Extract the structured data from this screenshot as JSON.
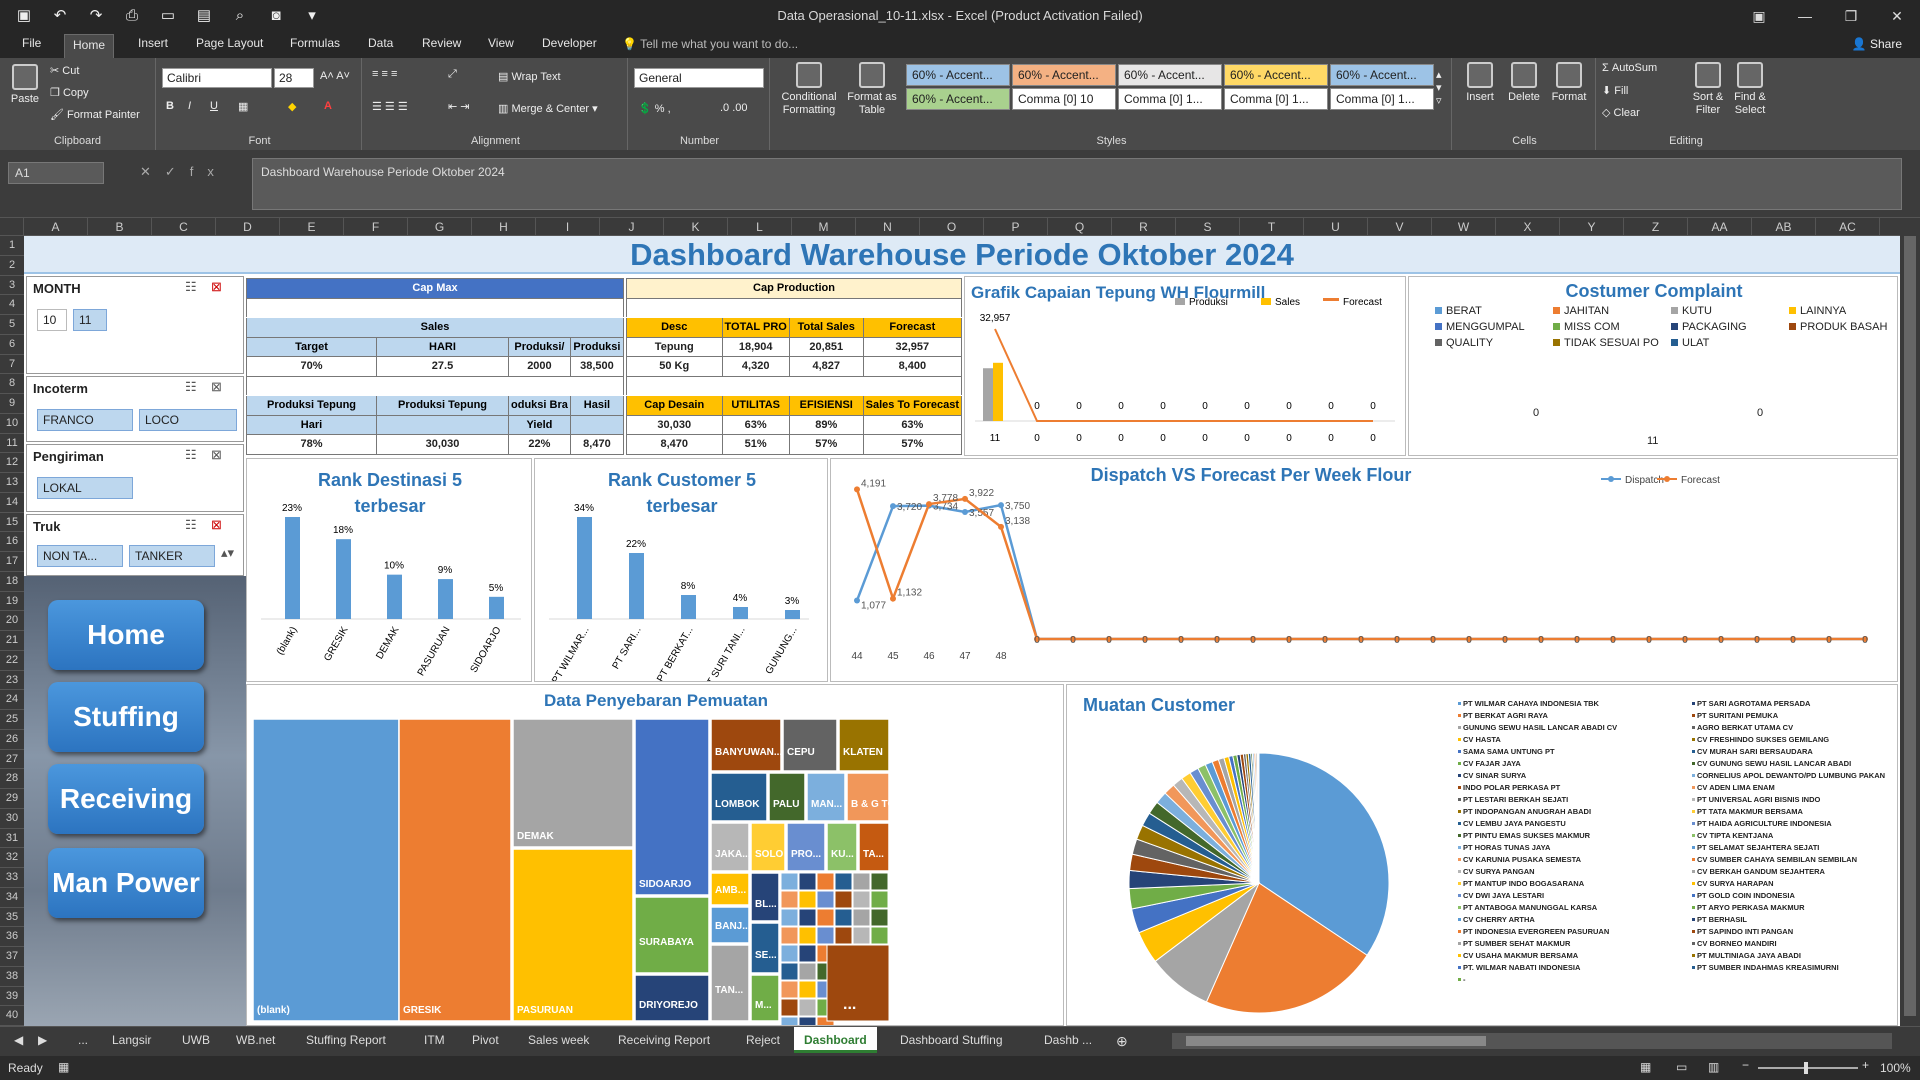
{
  "window": {
    "title": "Data Operasional_10-11.xlsx - Excel (Product Activation Failed)"
  },
  "menu_tabs": [
    "File",
    "Home",
    "Insert",
    "Page Layout",
    "Formulas",
    "Data",
    "Review",
    "View",
    "Developer"
  ],
  "tell_me": "Tell me what you want to do...",
  "share": "Share",
  "ribbon": {
    "clipboard": {
      "label": "Clipboard",
      "paste": "Paste",
      "cut": "Cut",
      "copy": "Copy",
      "format_painter": "Format Painter"
    },
    "font": {
      "label": "Font",
      "name": "Calibri",
      "size": "28"
    },
    "alignment": {
      "label": "Alignment",
      "wrap": "Wrap Text",
      "merge": "Merge & Center"
    },
    "number": {
      "label": "Number",
      "format": "General"
    },
    "styles": {
      "label": "Styles",
      "conditional": "Conditional Formatting",
      "format_table": "Format as Table",
      "items": [
        {
          "text": "60% - Accent...",
          "bg": "#9dc3e6"
        },
        {
          "text": "60% - Accent...",
          "bg": "#f4b183"
        },
        {
          "text": "60% - Accent...",
          "bg": "#e7e6e6"
        },
        {
          "text": "60% - Accent...",
          "bg": "#ffd966"
        },
        {
          "text": "60% - Accent...",
          "bg": "#9dc3e6"
        },
        {
          "text": "60% - Accent...",
          "bg": "#a9d18e"
        },
        {
          "text": "Comma [0] 10",
          "bg": "#ffffff"
        },
        {
          "text": "Comma [0] 1...",
          "bg": "#ffffff"
        },
        {
          "text": "Comma [0] 1...",
          "bg": "#ffffff"
        },
        {
          "text": "Comma [0] 1...",
          "bg": "#ffffff"
        }
      ]
    },
    "cells": {
      "label": "Cells",
      "insert": "Insert",
      "delete": "Delete",
      "format": "Format"
    },
    "editing": {
      "label": "Editing",
      "autosum": "AutoSum",
      "fill": "Fill",
      "clear": "Clear",
      "sort": "Sort & Filter",
      "find": "Find & Select"
    }
  },
  "formula_bar": {
    "namebox": "A1",
    "fx": "fx",
    "content": "Dashboard  Warehouse Periode Oktober 2024"
  },
  "columns": [
    "A",
    "B",
    "C",
    "D",
    "E",
    "F",
    "G",
    "H",
    "I",
    "J",
    "K",
    "L",
    "M",
    "N",
    "O",
    "P",
    "Q",
    "R",
    "S",
    "T",
    "U",
    "V",
    "W",
    "X",
    "Y",
    "Z",
    "AA",
    "AB",
    "AC"
  ],
  "rows": [
    "1",
    "2",
    "3",
    "4",
    "5",
    "6",
    "7",
    "8",
    "9",
    "10",
    "11",
    "12",
    "13",
    "14",
    "15",
    "16",
    "17",
    "18",
    "19",
    "20",
    "21",
    "22",
    "23",
    "24",
    "25",
    "26",
    "27",
    "28",
    "29",
    "30",
    "31",
    "32",
    "33",
    "34",
    "35",
    "36",
    "37",
    "38",
    "39",
    "40"
  ],
  "dashboard": {
    "title": "Dashboard  Warehouse Periode Oktober 2024"
  },
  "slicers": [
    {
      "title": "MONTH",
      "items": [
        "10",
        "11"
      ]
    },
    {
      "title": "Incoterm",
      "items": [
        "FRANCO",
        "LOCO"
      ]
    },
    {
      "title": "Pengiriman",
      "items": [
        "LOKAL"
      ]
    },
    {
      "title": "Truk",
      "items": [
        "NON TA...",
        "TANKER"
      ]
    }
  ],
  "nav": [
    "Home",
    "Stuffing",
    "Receiving",
    "Man Power"
  ],
  "cap_max": {
    "title": "Cap Max",
    "sales": "Sales",
    "headers": [
      "Target",
      "HARI",
      "Produksi/",
      "Produksi"
    ],
    "values": [
      "70%",
      "27.5",
      "2000",
      "38,500"
    ],
    "headers2": [
      "Produksi Tepung",
      "Produksi Tepung",
      "oduksi Bra",
      "Hasil"
    ],
    "headers2b": [
      "Hari",
      "",
      "Yield",
      ""
    ],
    "values2": [
      "78%",
      "30,030",
      "22%",
      "8,470"
    ]
  },
  "cap_production": {
    "title": "Cap Production",
    "headers": [
      "Desc",
      "TOTAL PRO",
      "Total Sales",
      "Forecast"
    ],
    "rows": [
      [
        "Tepung",
        "18,904",
        "20,851",
        "32,957"
      ],
      [
        "50 Kg",
        "4,320",
        "4,827",
        "8,400"
      ]
    ],
    "headers2": [
      "Cap Desain",
      "UTILITAS",
      "EFISIENSI",
      "Sales To Forecast"
    ],
    "values2": [
      "30,030",
      "63%",
      "89%",
      "63%"
    ],
    "values3": [
      "8,470",
      "51%",
      "57%",
      "57%"
    ]
  },
  "grafik": {
    "title": "Grafik Capaian Tepung WH Flourmill",
    "legend": [
      "Produksi",
      "Sales",
      "Forecast"
    ],
    "colors": [
      "#a5a5a5",
      "#ffc000",
      "#ed7d31"
    ],
    "label_max": "32,957",
    "zeros": [
      "0",
      "0",
      "0",
      "0",
      "0",
      "0",
      "0",
      "0",
      "0"
    ],
    "xlabels": [
      "11",
      "0",
      "0",
      "0",
      "0",
      "0",
      "0",
      "0",
      "0",
      "0"
    ]
  },
  "complaint": {
    "title": "Costumer  Complaint",
    "legend": [
      [
        "BERAT",
        "#5b9bd5"
      ],
      [
        "JAHITAN",
        "#ed7d31"
      ],
      [
        "KUTU",
        "#a5a5a5"
      ],
      [
        "LAINNYA",
        "#ffc000"
      ],
      [
        "MENGGUMPAL",
        "#4472c4"
      ],
      [
        "MISS COM",
        "#70ad47"
      ],
      [
        "PACKAGING",
        "#264478"
      ],
      [
        "PRODUK BASAH",
        "#9e480e"
      ],
      [
        "QUALITY",
        "#636363"
      ],
      [
        "TIDAK SESUAI PO",
        "#997300"
      ],
      [
        "ULAT",
        "#255e91"
      ]
    ],
    "v1": "0",
    "v2": "0",
    "xlabel": "11"
  },
  "rank_dest": {
    "title": "Rank Destinasi  5 terbesar",
    "title1": "Rank Destinasi  5",
    "title2": "terbesar"
  },
  "rank_cust": {
    "title": "Rank Customer  5 terbesar",
    "title1": "Rank Customer  5",
    "title2": "terbesar"
  },
  "dispatch": {
    "title": "Dispatch  VS Forecast Per Week Flour",
    "legend": [
      "Dispatch",
      "Forecast"
    ],
    "xlabels": [
      "44",
      "45",
      "46",
      "47",
      "48"
    ]
  },
  "treemap": {
    "title": "Data Penyebaran Pemuatan"
  },
  "muatan": {
    "title": "Muatan  Customer",
    "legend_left": [
      "PT WILMAR CAHAYA INDONESIA TBK",
      "PT BERKAT AGRI RAYA",
      "GUNUNG SEWU HASIL LANCAR ABADI CV",
      "CV HASTA",
      "SAMA SAMA UNTUNG PT",
      "CV FAJAR JAYA",
      "CV SINAR SURYA",
      "INDO POLAR PERKASA PT",
      "PT LESTARI BERKAH SEJATI",
      "PT INDOPANGAN ANUGRAH ABADI",
      "CV LEMBU JAYA PANGESTU",
      "PT PINTU EMAS SUKSES MAKMUR",
      "PT HORAS TUNAS JAYA",
      "CV KARUNIA PUSAKA SEMESTA",
      "CV SURYA PANGAN",
      "PT MANTUP INDO BOGASARANA",
      "CV DWI JAYA LESTARI",
      "PT ANTABOGA MANUNGGAL KARSA",
      "CV CHERRY ARTHA",
      "PT INDONESIA EVERGREEN PASURUAN",
      "PT SUMBER SEHAT MAKMUR",
      "CV USAHA MAKMUR BERSAMA",
      "PT. WILMAR NABATI INDONESIA",
      "-"
    ],
    "legend_right": [
      "PT SARI AGROTAMA PERSADA",
      "PT SURITANI PEMUKA",
      "AGRO BERKAT UTAMA CV",
      "CV FRESHINDO SUKSES GEMILANG",
      "CV MURAH SARI BERSAUDARA",
      "CV GUNUNG SEWU HASIL LANCAR ABADI",
      "CORNELIUS APOL DEWANTO/PD LUMBUNG PAKAN",
      "CV ADEN LIMA ENAM",
      "PT UNIVERSAL AGRI BISNIS INDO",
      "PT TATA MAKMUR BERSAMA",
      "PT HAIDA AGRICULTURE INDONESIA",
      "CV TIPTA KENTJANA",
      "PT SELAMAT SEJAHTERA SEJATI",
      "CV SUMBER CAHAYA SEMBILAN SEMBILAN",
      "CV BERKAH GANDUM SEJAHTERA",
      "CV SURYA HARAPAN",
      "PT GOLD COIN INDONESIA",
      "PT ARYO PERKASA MAKMUR",
      "PT BERHASIL",
      "PT SAPINDO INTI PANGAN",
      "CV BORNEO MANDIRI",
      "PT MULTINIAGA JAYA ABADI",
      "PT SUMBER INDAHMAS KREASIMURNI"
    ]
  },
  "sheet_tabs": [
    "...",
    "Langsir",
    "UWB",
    "WB.net",
    "Stuffing Report",
    "ITM",
    "Pivot",
    "Sales week",
    "Receiving Report",
    "Reject",
    "Dashboard",
    "Dashboard Stuffing",
    "Dashb ..."
  ],
  "status": {
    "ready": "Ready",
    "zoom": "100%"
  },
  "chart_data": [
    {
      "type": "bar",
      "title": "Grafik Capaian Tepung WH Flourmill",
      "categories": [
        "11",
        "0",
        "0",
        "0",
        "0",
        "0",
        "0",
        "0",
        "0",
        "0"
      ],
      "series": [
        {
          "name": "Produksi",
          "values": [
            18904,
            0,
            0,
            0,
            0,
            0,
            0,
            0,
            0,
            0
          ]
        },
        {
          "name": "Sales",
          "values": [
            20851,
            0,
            0,
            0,
            0,
            0,
            0,
            0,
            0,
            0
          ]
        },
        {
          "name": "Forecast",
          "values": [
            32957,
            0,
            0,
            0,
            0,
            0,
            0,
            0,
            0,
            0
          ]
        }
      ]
    },
    {
      "type": "bar",
      "title": "Rank Destinasi  5 terbesar",
      "categories": [
        "(blank)",
        "GRESIK",
        "DEMAK",
        "PASURUAN",
        "SIDOARJO"
      ],
      "values": [
        23,
        18,
        10,
        9,
        5
      ],
      "labels": [
        "23%",
        "18%",
        "10%",
        "9%",
        "5%"
      ]
    },
    {
      "type": "bar",
      "title": "Rank Customer  5 terbesar",
      "categories": [
        "PT WILMAR...",
        "PT SARI...",
        "PT BERKAT...",
        "PT SURI TANI...",
        "GUNUNG..."
      ],
      "values": [
        34,
        22,
        8,
        4,
        3
      ],
      "labels": [
        "34%",
        "22%",
        "8%",
        "4%",
        "3%"
      ]
    },
    {
      "type": "line",
      "title": "Dispatch  VS Forecast Per Week Flour",
      "x": [
        "44",
        "45",
        "46",
        "47",
        "48"
      ],
      "series": [
        {
          "name": "Dispatch",
          "values": [
            1077,
            3720,
            3734,
            3557,
            3750
          ],
          "labels": [
            "1,077",
            "3,720",
            "3,734",
            "3,557",
            "3,750"
          ]
        },
        {
          "name": "Forecast",
          "values": [
            4191,
            1132,
            3778,
            3922,
            3138
          ],
          "labels": [
            "4,191",
            "1,132",
            "3,778",
            "3,922",
            "3,138"
          ]
        }
      ],
      "trailing_zeros": 24
    },
    {
      "type": "heatmap",
      "title": "Data Penyebaran Pemuatan",
      "cells": [
        {
          "label": "(blank)",
          "color": "#5b9bd5"
        },
        {
          "label": "GRESIK",
          "color": "#ed7d31"
        },
        {
          "label": "DEMAK",
          "color": "#a5a5a5"
        },
        {
          "label": "PASURUAN",
          "color": "#ffc000"
        },
        {
          "label": "SIDOARJO",
          "color": "#4472c4"
        },
        {
          "label": "SURABAYA",
          "color": "#70ad47"
        },
        {
          "label": "DRIYOREJO",
          "color": "#264478"
        },
        {
          "label": "BANYUWAN...",
          "color": "#9e480e"
        },
        {
          "label": "CEPU",
          "color": "#636363"
        },
        {
          "label": "KLATEN",
          "color": "#997300"
        },
        {
          "label": "LOMBOK",
          "color": "#255e91"
        },
        {
          "label": "PALU",
          "color": "#43682b"
        },
        {
          "label": "MAN...",
          "color": "#7cafdd"
        },
        {
          "label": "B & G TOW...",
          "color": "#f1975a"
        },
        {
          "label": "JAKA... UTARA",
          "color": "#b7b7b7"
        },
        {
          "label": "SOLO",
          "color": "#ffcd33"
        },
        {
          "label": "PRO...",
          "color": "#698ed0"
        },
        {
          "label": "KU...",
          "color": "#8cc168"
        },
        {
          "label": "TA...",
          "color": "#c55a11"
        },
        {
          "label": "AMB...",
          "color": "#ffc000"
        },
        {
          "label": "BL...",
          "color": "#264478"
        },
        {
          "label": "SE...",
          "color": "#255e91"
        },
        {
          "label": "BANJ...",
          "color": "#5b9bd5"
        },
        {
          "label": "M...",
          "color": "#70ad47"
        },
        {
          "label": "TAN...",
          "color": "#a5a5a5"
        },
        {
          "label": "JA...",
          "color": "#ed7d31"
        }
      ]
    },
    {
      "type": "pie",
      "title": "Muatan  Customer",
      "values": [
        34,
        22,
        8,
        4,
        3,
        2.5,
        2.2,
        2,
        1.9,
        1.8,
        1.7,
        1.6,
        1.5,
        1.4,
        1.3,
        1.2,
        1.1,
        1,
        0.9,
        0.8,
        0.7,
        0.6,
        0.5,
        0.5,
        0.4,
        0.4,
        0.3,
        0.3,
        0.3,
        0.2,
        0.2,
        0.2,
        0.2,
        0.1,
        0.1
      ]
    }
  ]
}
